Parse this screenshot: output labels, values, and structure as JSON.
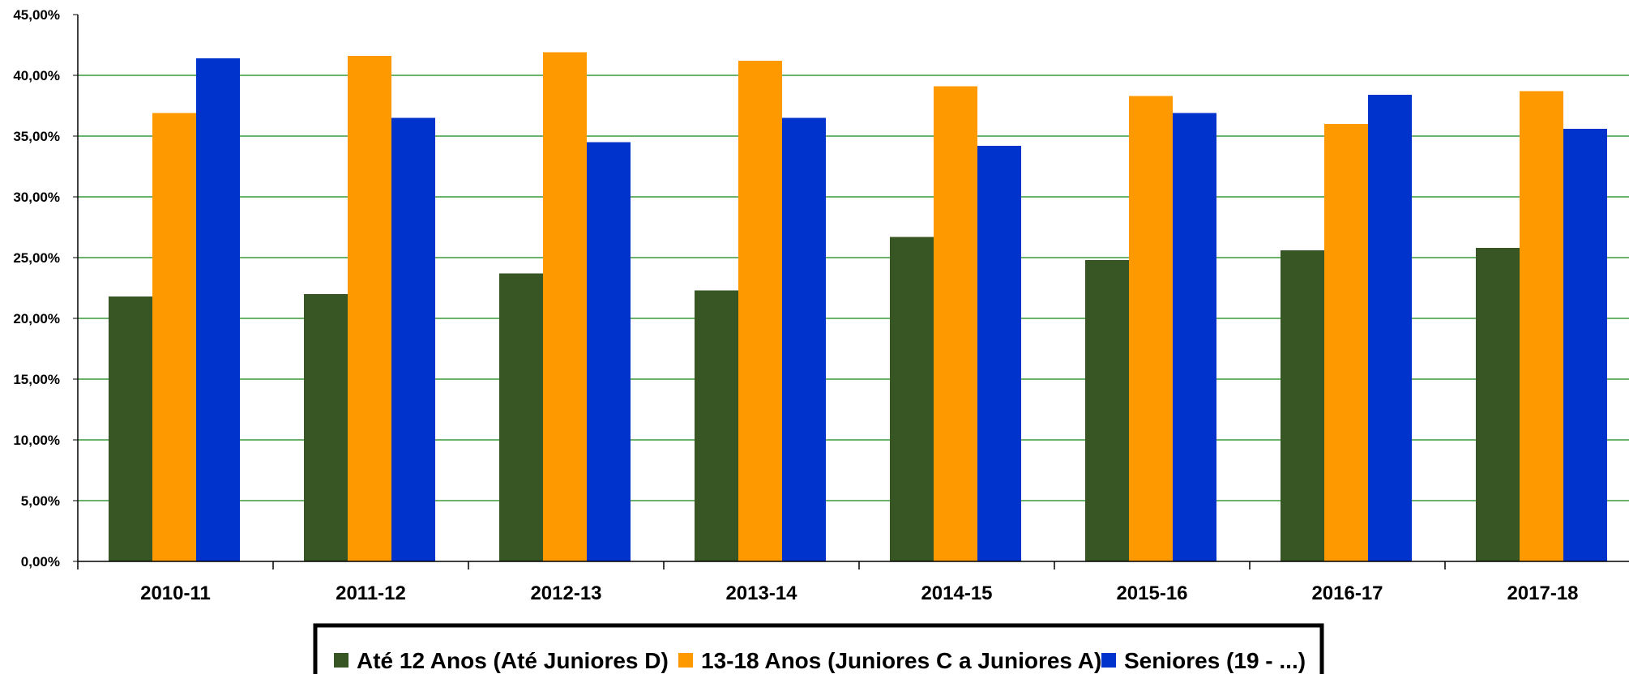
{
  "chart_data": {
    "type": "bar",
    "categories": [
      "2010-11",
      "2011-12",
      "2012-13",
      "2013-14",
      "2014-15",
      "2015-16",
      "2016-17",
      "2017-18"
    ],
    "series": [
      {
        "name": "Até 12 Anos (Até Juniores D)",
        "color": "#375623",
        "values": [
          21.8,
          22.0,
          23.7,
          22.3,
          26.7,
          24.8,
          25.6,
          25.8
        ]
      },
      {
        "name": "13-18 Anos (Juniores C a Juniores A)",
        "color": "#FF9900",
        "values": [
          36.9,
          41.6,
          41.9,
          41.2,
          39.1,
          38.3,
          36.0,
          38.7
        ]
      },
      {
        "name": "Seniores (19 - ...)",
        "color": "#0033CC",
        "values": [
          41.4,
          36.5,
          34.5,
          36.5,
          34.2,
          36.9,
          38.4,
          35.6
        ]
      }
    ],
    "yticks": [
      "0,00%",
      "5,00%",
      "10,00%",
      "15,00%",
      "20,00%",
      "25,00%",
      "30,00%",
      "35,00%",
      "40,00%",
      "45,00%"
    ],
    "ylim": [
      0,
      45
    ],
    "ystep": 5,
    "grid": true,
    "grid_color": "#3A9A3A",
    "legend_position": "bottom"
  }
}
